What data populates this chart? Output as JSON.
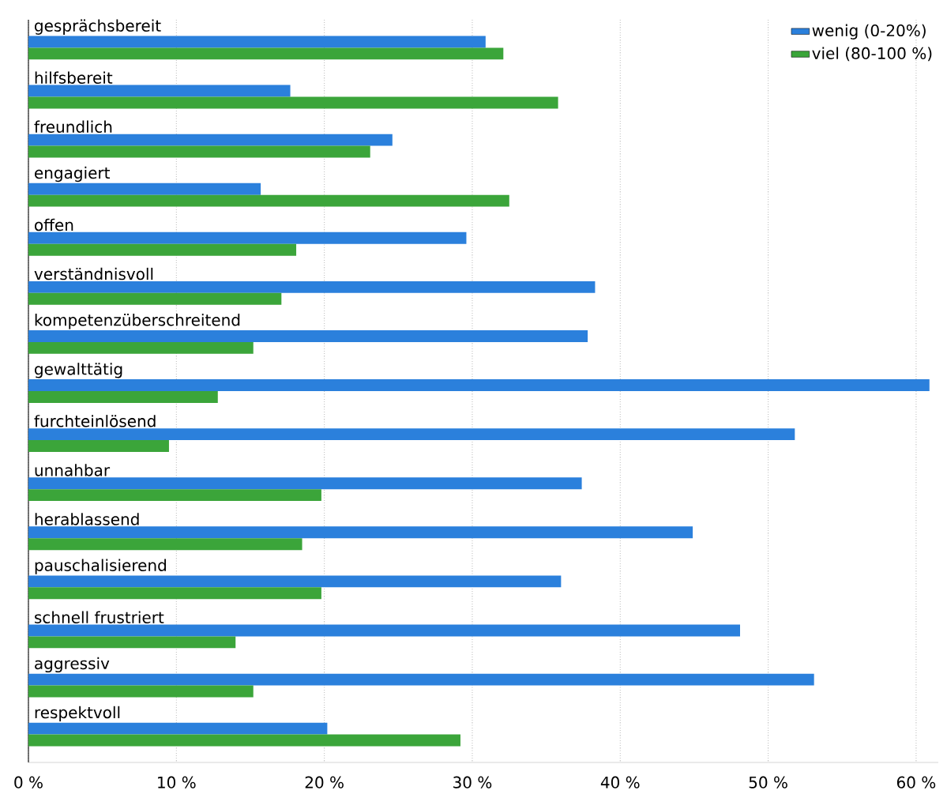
{
  "chart_data": {
    "type": "bar",
    "orientation": "horizontal",
    "categories": [
      "gesprächsbereit",
      "hilfsbereit",
      "freundlich",
      "engagiert",
      "offen",
      "verständnisvoll",
      "kompetenzüberschreitend",
      "gewalttätig",
      "furchteinlösend",
      "unnahbar",
      "herablassend",
      "pauschalisierend",
      "schnell frustriert",
      "aggressiv",
      "respektvoll"
    ],
    "series": [
      {
        "name": "wenig (0-20%)",
        "color": "#2b80dc",
        "values": [
          30.9,
          17.7,
          24.6,
          15.7,
          29.6,
          38.3,
          37.8,
          60.9,
          51.8,
          37.4,
          44.9,
          36.0,
          48.1,
          53.1,
          20.2
        ]
      },
      {
        "name": "viel (80-100 %)",
        "color": "#3ba53a",
        "values": [
          32.1,
          35.8,
          23.1,
          32.5,
          18.1,
          17.1,
          15.2,
          12.8,
          9.5,
          19.8,
          18.5,
          19.8,
          14.0,
          15.2,
          29.2
        ]
      }
    ],
    "xlim": [
      0,
      61.5
    ],
    "xticks": [
      {
        "value": 0,
        "label": "0 %"
      },
      {
        "value": 10,
        "label": "10 %"
      },
      {
        "value": 20,
        "label": "20 %"
      },
      {
        "value": 30,
        "label": "30 %"
      },
      {
        "value": 40,
        "label": "40 %"
      },
      {
        "value": 50,
        "label": "50 %"
      },
      {
        "value": 60,
        "label": "60 %"
      }
    ],
    "grid": "x",
    "legend": "top right"
  }
}
